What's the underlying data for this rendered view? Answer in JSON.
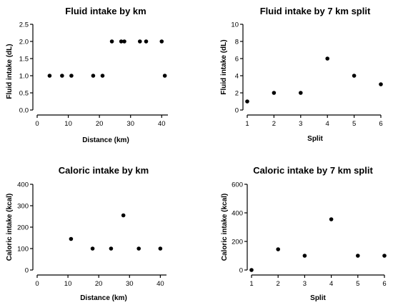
{
  "chart_data": [
    {
      "id": "fluid-km",
      "type": "scatter",
      "title": "Fluid intake by km",
      "xlabel": "Distance (km)",
      "ylabel": "Fluid intake (dL)",
      "xlim": [
        0,
        42
      ],
      "ylim": [
        0,
        2.5
      ],
      "xticks": [
        0,
        10,
        20,
        30,
        40
      ],
      "yticks": [
        0.0,
        0.5,
        1.0,
        1.5,
        2.0,
        2.5
      ],
      "ytick_labels": [
        "0.0",
        "0.5",
        "1.0",
        "1.5",
        "2.0",
        "2.5"
      ],
      "x": [
        4,
        8,
        11,
        18,
        21,
        24,
        27,
        28,
        33,
        35,
        40,
        41
      ],
      "y": [
        1.0,
        1.0,
        1.0,
        1.0,
        1.0,
        2.0,
        2.0,
        2.0,
        2.0,
        2.0,
        2.0,
        1.0
      ]
    },
    {
      "id": "fluid-split",
      "type": "scatter",
      "title": "Fluid intake by 7 km split",
      "xlabel": "Split",
      "ylabel": "Fluid intake (dL)",
      "xlim": [
        1,
        6
      ],
      "ylim": [
        0,
        10
      ],
      "xticks": [
        1,
        2,
        3,
        4,
        5,
        6
      ],
      "yticks": [
        0,
        2,
        4,
        6,
        8,
        10
      ],
      "ytick_labels": [
        "0",
        "2",
        "4",
        "6",
        "8",
        "10"
      ],
      "x": [
        1,
        2,
        3,
        4,
        5,
        6
      ],
      "y": [
        1,
        2,
        2,
        6,
        4,
        3
      ]
    },
    {
      "id": "caloric-km",
      "type": "scatter",
      "title": "Caloric intake by km",
      "xlabel": "Distance (km)",
      "ylabel": "Caloric intake (kcal)",
      "xlim": [
        0,
        42
      ],
      "ylim": [
        0,
        400
      ],
      "xticks": [
        0,
        10,
        20,
        30,
        40
      ],
      "yticks": [
        0,
        100,
        200,
        300,
        400
      ],
      "ytick_labels": [
        "0",
        "100",
        "200",
        "300",
        "400"
      ],
      "x": [
        11,
        18,
        24,
        28,
        33,
        40
      ],
      "y": [
        145,
        100,
        100,
        255,
        100,
        100
      ]
    },
    {
      "id": "caloric-split",
      "type": "scatter",
      "title": "Caloric intake by 7 km split",
      "xlabel": "Split",
      "ylabel": "Caloric intake (kcal)",
      "xlim": [
        1,
        6
      ],
      "ylim": [
        0,
        600
      ],
      "xticks": [
        1,
        2,
        3,
        4,
        5,
        6
      ],
      "yticks": [
        0,
        200,
        400,
        600
      ],
      "ytick_labels": [
        "0",
        "200",
        "400",
        "600"
      ],
      "x": [
        1,
        2,
        3,
        4,
        5,
        6
      ],
      "y": [
        0,
        145,
        100,
        355,
        100,
        100
      ]
    }
  ]
}
